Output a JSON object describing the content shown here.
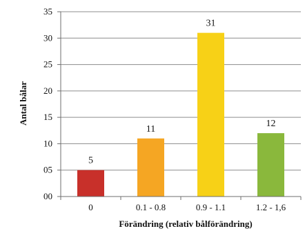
{
  "chart_data": {
    "type": "bar",
    "categories": [
      "0",
      "0.1 - 0.8",
      "0.9 - 1.1",
      "1.2 - 1,6"
    ],
    "values": [
      5,
      11,
      31,
      12
    ],
    "data_labels": [
      "5",
      "11",
      "31",
      "12"
    ],
    "y_tick_labels": [
      "00",
      "05",
      "10",
      "15",
      "20",
      "25",
      "30",
      "35"
    ],
    "ylim": [
      0,
      35
    ],
    "y_tick_step": 5,
    "xlabel": "Förändring (relativ bålförändring)",
    "ylabel": "Antal bålar",
    "grid": true,
    "legend": "none",
    "colors": [
      "#c8302a",
      "#f5a623",
      "#f7d117",
      "#8ab83c"
    ]
  }
}
